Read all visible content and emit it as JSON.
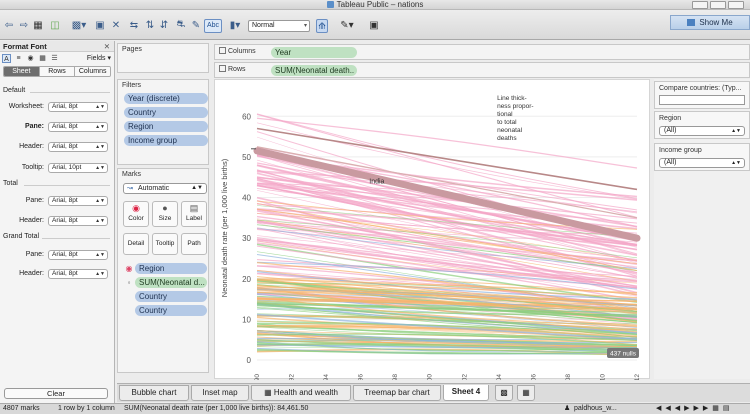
{
  "window": {
    "title": "Tableau Public – nations"
  },
  "toolbar": {
    "mark_size_select": "Normal",
    "abc_label": "Abc",
    "show_me_label": "Show Me"
  },
  "format_pane": {
    "title": "Format Font",
    "fields_label": "Fields",
    "tabs": [
      "Sheet",
      "Rows",
      "Columns"
    ],
    "selected_tab": "Sheet",
    "sections": {
      "default": "Default",
      "total": "Total",
      "grand_total": "Grand Total"
    },
    "rows": {
      "worksheet": {
        "label": "Worksheet:",
        "value": "Arial, 8pt"
      },
      "pane": {
        "label": "Pane:",
        "value": "Arial, 8pt"
      },
      "header": {
        "label": "Header:",
        "value": "Arial, 8pt"
      },
      "tooltip": {
        "label": "Tooltip:",
        "value": "Arial, 10pt"
      },
      "total_pane": {
        "label": "Pane:",
        "value": "Arial, 8pt"
      },
      "total_header": {
        "label": "Header:",
        "value": "Arial, 8pt"
      },
      "gt_pane": {
        "label": "Pane:",
        "value": "Arial, 8pt"
      },
      "gt_header": {
        "label": "Header:",
        "value": "Arial, 8pt"
      }
    },
    "clear_label": "Clear"
  },
  "cards": {
    "pages_title": "Pages",
    "filters_title": "Filters",
    "filters": [
      "Year (discrete)",
      "Country",
      "Region",
      "Income group"
    ],
    "marks_title": "Marks",
    "marks_type": "Automatic",
    "mark_buttons": {
      "color": "Color",
      "size": "Size",
      "label": "Label",
      "detail": "Detail",
      "tooltip": "Tooltip",
      "path": "Path"
    },
    "mark_fields": {
      "region": "Region",
      "size_field": "SUM(Neonatal d...",
      "country1": "Country",
      "country2": "Country"
    }
  },
  "shelves": {
    "columns_label": "Columns",
    "columns_pill": "Year",
    "rows_label": "Rows",
    "rows_pill": "SUM(Neonatal death.."
  },
  "right_pane": {
    "compare_title": "Compare countries: (Typ...",
    "region_title": "Region",
    "region_value": "(All)",
    "income_title": "Income group",
    "income_value": "(All)"
  },
  "sheet_tabs": [
    "Bubble chart",
    "Inset map",
    "Health and wealth",
    "Treemap bar chart",
    "Sheet 4"
  ],
  "selected_sheet": "Sheet 4",
  "status": {
    "marks": "4807 marks",
    "rows_cols": "1 row by 1 column",
    "sum": "SUM(Neonatal death rate (per 1,000 live births)): 84,461.50",
    "user": "paldhous_w..."
  },
  "chart_data": {
    "type": "line",
    "ylabel": "Neonatal death rate (per 1,000 live births)",
    "xlabel": "",
    "x_ticks": [
      "1990",
      "1992",
      "1994",
      "1996",
      "1998",
      "2000",
      "2002",
      "2004",
      "2006",
      "2008",
      "2010",
      "2012"
    ],
    "y_ticks": [
      0,
      10,
      20,
      30,
      40,
      50,
      60
    ],
    "ylim": [
      0,
      65
    ],
    "xlim": [
      1990,
      2012
    ],
    "annotations": {
      "india": "India",
      "note": "Line thick-\nness propor-\ntional\nto total\nneonatal\ndeaths",
      "nulls": "437 nulls"
    },
    "highlight_series": {
      "name": "India",
      "x": [
        1990,
        2012
      ],
      "y": [
        51.5,
        30.0
      ]
    },
    "colors": {
      "pink": "#f4a6c8",
      "green": "#8ccf7e",
      "orange": "#f7b46b",
      "blue": "#8fb3de",
      "india": "#c99aa0"
    }
  }
}
